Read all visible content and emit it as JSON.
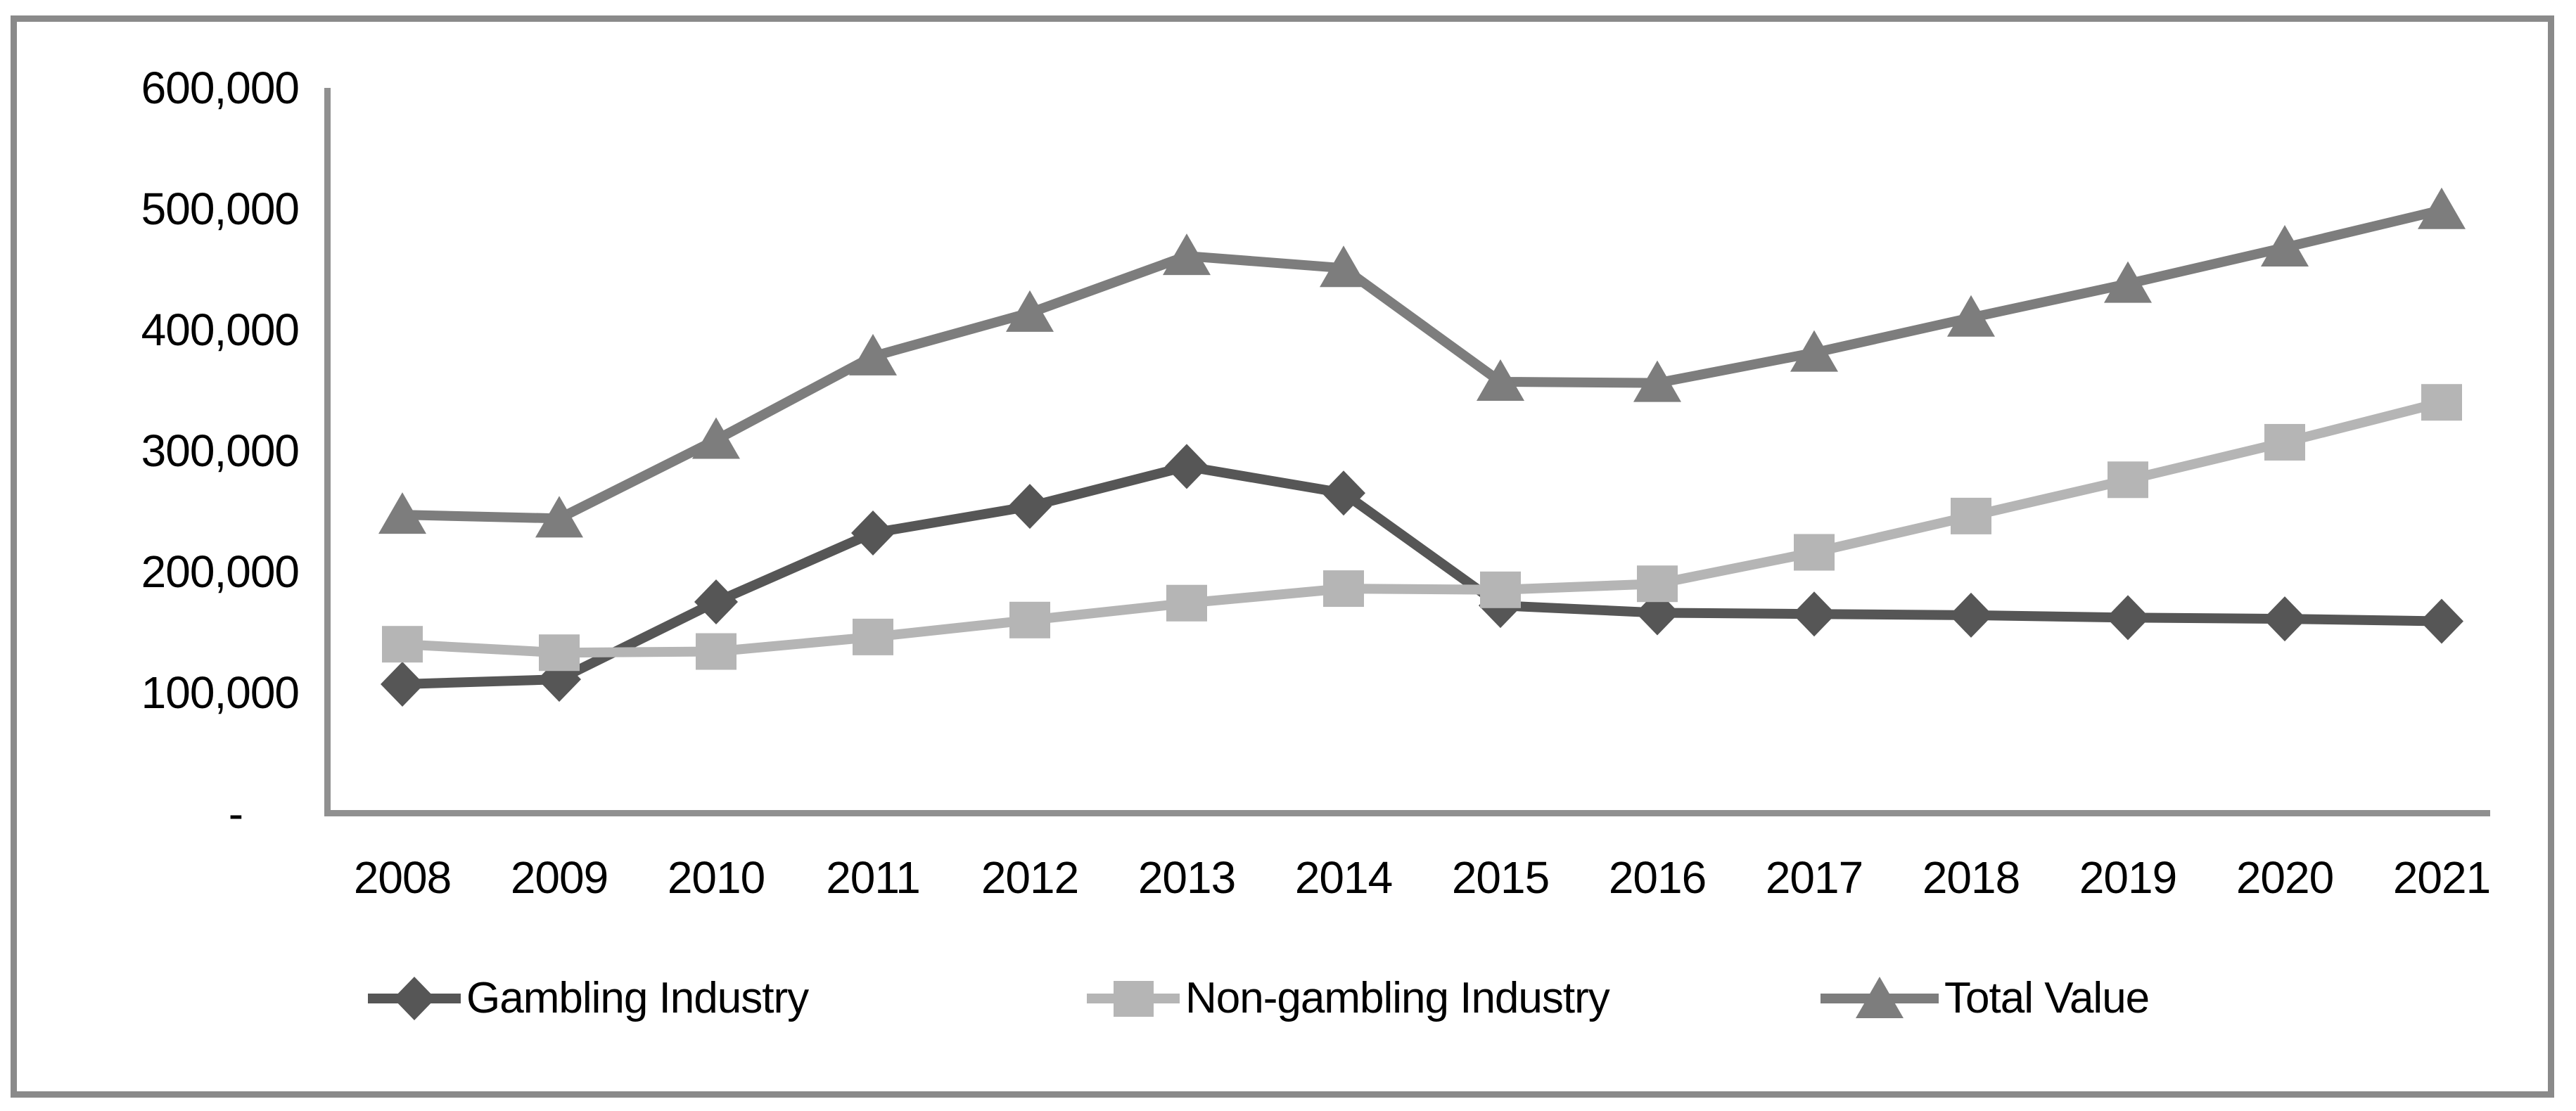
{
  "title": "",
  "chart_data": {
    "type": "line",
    "title": "",
    "xlabel": "",
    "ylabel": "",
    "categories": [
      "2008",
      "2009",
      "2010",
      "2011",
      "2012",
      "2013",
      "2014",
      "2015",
      "2016",
      "2017",
      "2018",
      "2019",
      "2020",
      "2021"
    ],
    "series": [
      {
        "name": "Gambling Industry",
        "marker": "diamond",
        "color": "#565656",
        "values": [
          107000,
          111000,
          175000,
          232000,
          254000,
          287000,
          265000,
          172000,
          166000,
          165000,
          164000,
          162000,
          161000,
          159000
        ]
      },
      {
        "name": "Non-gambling Industry",
        "marker": "square",
        "color": "#b5b5b5",
        "values": [
          140000,
          133000,
          134000,
          146000,
          160000,
          174000,
          186000,
          185000,
          190000,
          216000,
          246000,
          276000,
          307000,
          340000
        ]
      },
      {
        "name": "Total Value",
        "marker": "triangle",
        "color": "#7d7d7d",
        "values": [
          247000,
          244000,
          309000,
          378000,
          414000,
          461000,
          451000,
          357000,
          356000,
          381000,
          410000,
          438000,
          468000,
          499000
        ]
      }
    ],
    "ylim": [
      0,
      600000
    ],
    "ytick_step": 100000,
    "ytick_labels": [
      "600,000",
      "500,000",
      "400,000",
      "300,000",
      "200,000",
      "100,000",
      "-"
    ],
    "grid": false,
    "legend_position": "bottom"
  },
  "colors": {
    "axis": "#909090",
    "frame_border": "#8a8a8a",
    "text": "#000000",
    "background": "#ffffff"
  }
}
